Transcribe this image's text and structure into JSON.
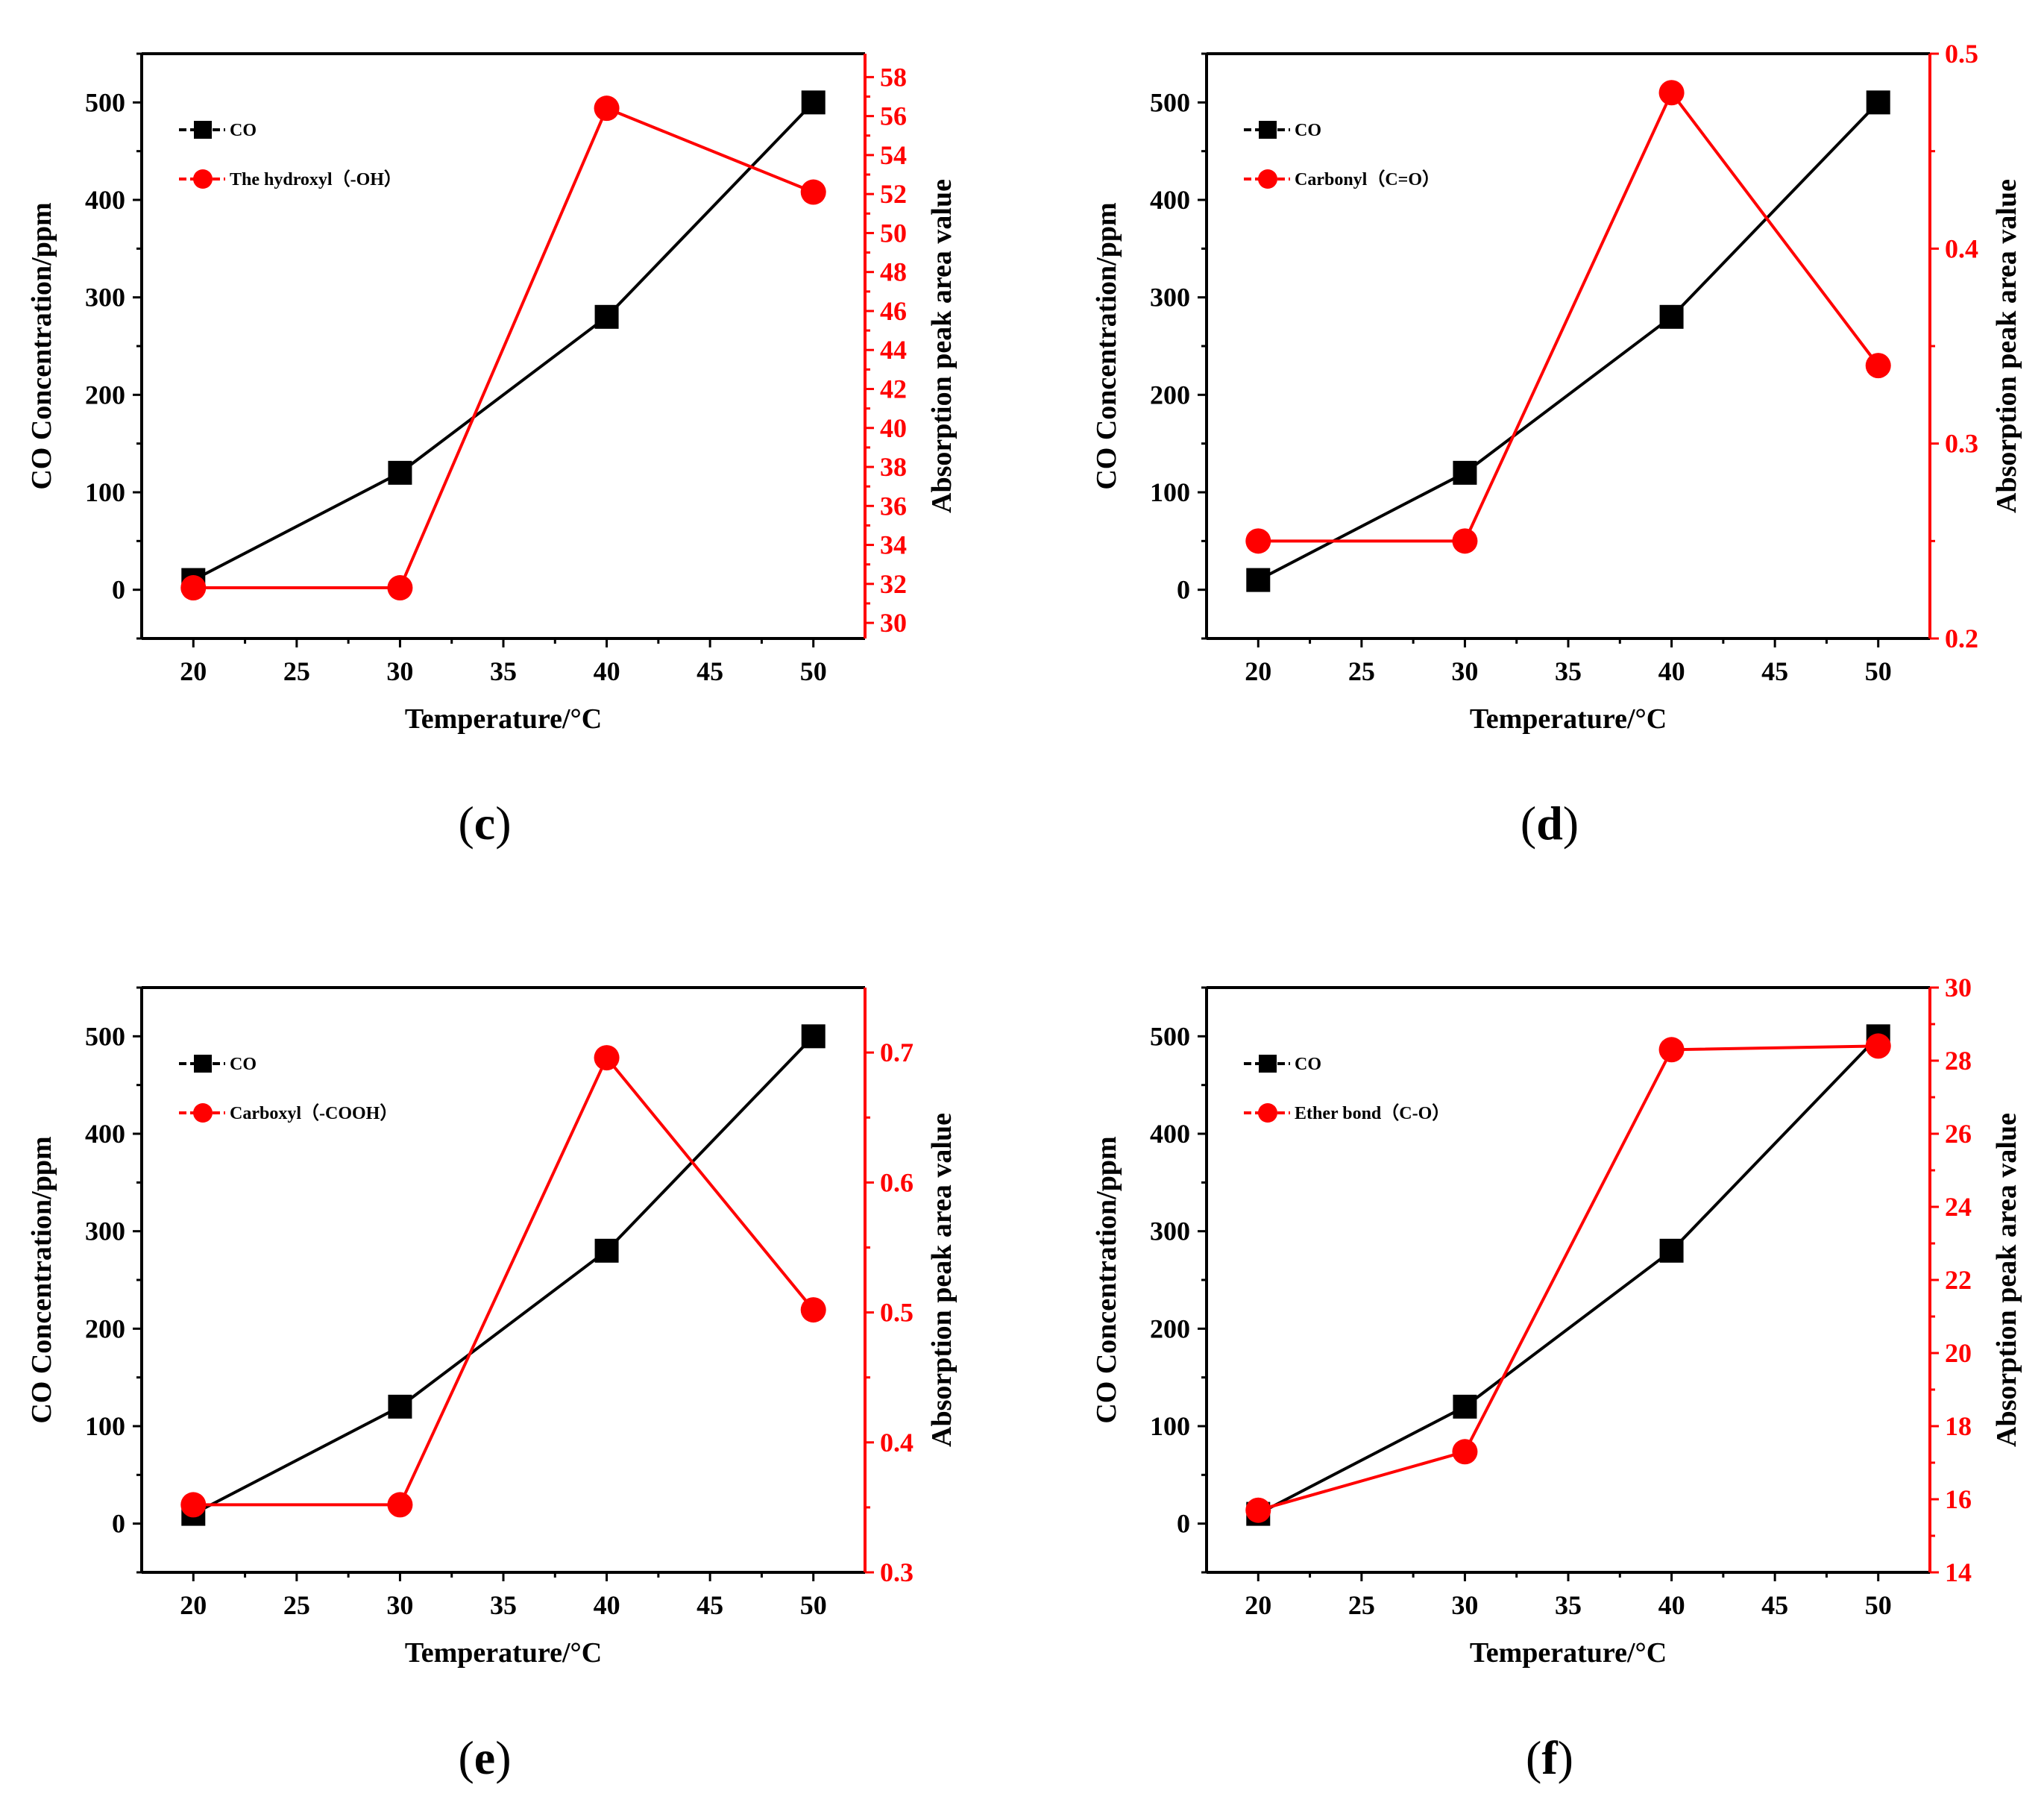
{
  "colors": {
    "co": "#000000",
    "functional": "#ff0000",
    "axis": "#000000",
    "right_axis": "#ff0000"
  },
  "chart_data": [
    {
      "panel": "(c)",
      "panel_letter": "c",
      "type": "line",
      "x": [
        20,
        30,
        40,
        50
      ],
      "xlim": [
        17.5,
        52.5
      ],
      "xticks": [
        20,
        25,
        30,
        35,
        40,
        45,
        50
      ],
      "xlabel": "Temperature/°C",
      "ylabel": "CO Concentration/ppm",
      "ylim": [
        -50,
        550
      ],
      "yticks": [
        0,
        100,
        200,
        300,
        400,
        500
      ],
      "y2label": "Absorption peak area value",
      "y2lim": [
        29.2,
        59.2
      ],
      "y2ticks": [
        30,
        32,
        34,
        36,
        38,
        40,
        42,
        44,
        46,
        48,
        50,
        52,
        54,
        56,
        58
      ],
      "series": [
        {
          "name": "CO",
          "axis": "left",
          "marker": "square",
          "values": [
            10,
            120,
            280,
            500
          ]
        },
        {
          "name": "The hydroxyl（-OH）",
          "axis": "right",
          "marker": "circle",
          "values": [
            31.8,
            31.8,
            56.4,
            52.1
          ]
        }
      ]
    },
    {
      "panel": "(d)",
      "panel_letter": "d",
      "type": "line",
      "x": [
        20,
        30,
        40,
        50
      ],
      "xlim": [
        17.5,
        52.5
      ],
      "xticks": [
        20,
        25,
        30,
        35,
        40,
        45,
        50
      ],
      "xlabel": "Temperature/°C",
      "ylabel": "CO Concentration/ppm",
      "ylim": [
        -50,
        550
      ],
      "yticks": [
        0,
        100,
        200,
        300,
        400,
        500
      ],
      "y2label": "Absorption peak area value",
      "y2lim": [
        0.2,
        0.5
      ],
      "y2ticks": [
        0.2,
        0.3,
        0.4,
        0.5
      ],
      "series": [
        {
          "name": "CO",
          "axis": "left",
          "marker": "square",
          "values": [
            10,
            120,
            280,
            500
          ]
        },
        {
          "name": "Carbonyl（C=O）",
          "axis": "right",
          "marker": "circle",
          "values": [
            0.25,
            0.25,
            0.48,
            0.34
          ]
        }
      ]
    },
    {
      "panel": "(e)",
      "panel_letter": "e",
      "type": "line",
      "x": [
        20,
        30,
        40,
        50
      ],
      "xlim": [
        17.5,
        52.5
      ],
      "xticks": [
        20,
        25,
        30,
        35,
        40,
        45,
        50
      ],
      "xlabel": "Temperature/°C",
      "ylabel": "CO Concentration/ppm",
      "ylim": [
        -50,
        550
      ],
      "yticks": [
        0,
        100,
        200,
        300,
        400,
        500
      ],
      "y2label": "Absorption peak area value",
      "y2lim": [
        0.3,
        0.75
      ],
      "y2ticks": [
        0.3,
        0.4,
        0.5,
        0.6,
        0.7
      ],
      "series": [
        {
          "name": "CO",
          "axis": "left",
          "marker": "square",
          "values": [
            10,
            120,
            280,
            500
          ]
        },
        {
          "name": "Carboxyl（-COOH）",
          "axis": "right",
          "marker": "circle",
          "values": [
            0.352,
            0.352,
            0.696,
            0.502
          ]
        }
      ]
    },
    {
      "panel": "(f)",
      "panel_letter": "f",
      "type": "line",
      "x": [
        20,
        30,
        40,
        50
      ],
      "xlim": [
        17.5,
        52.5
      ],
      "xticks": [
        20,
        25,
        30,
        35,
        40,
        45,
        50
      ],
      "xlabel": "Temperature/°C",
      "ylabel": "CO Concentration/ppm",
      "ylim": [
        -50,
        550
      ],
      "yticks": [
        0,
        100,
        200,
        300,
        400,
        500
      ],
      "y2label": "Absorption peak area value",
      "y2lim": [
        14,
        30
      ],
      "y2ticks": [
        14,
        16,
        18,
        20,
        22,
        24,
        26,
        28,
        30
      ],
      "series": [
        {
          "name": "CO",
          "axis": "left",
          "marker": "square",
          "values": [
            10,
            120,
            280,
            500
          ]
        },
        {
          "name": "Ether bond（C-O）",
          "axis": "right",
          "marker": "circle",
          "values": [
            15.7,
            17.3,
            28.3,
            28.4
          ]
        }
      ]
    }
  ]
}
